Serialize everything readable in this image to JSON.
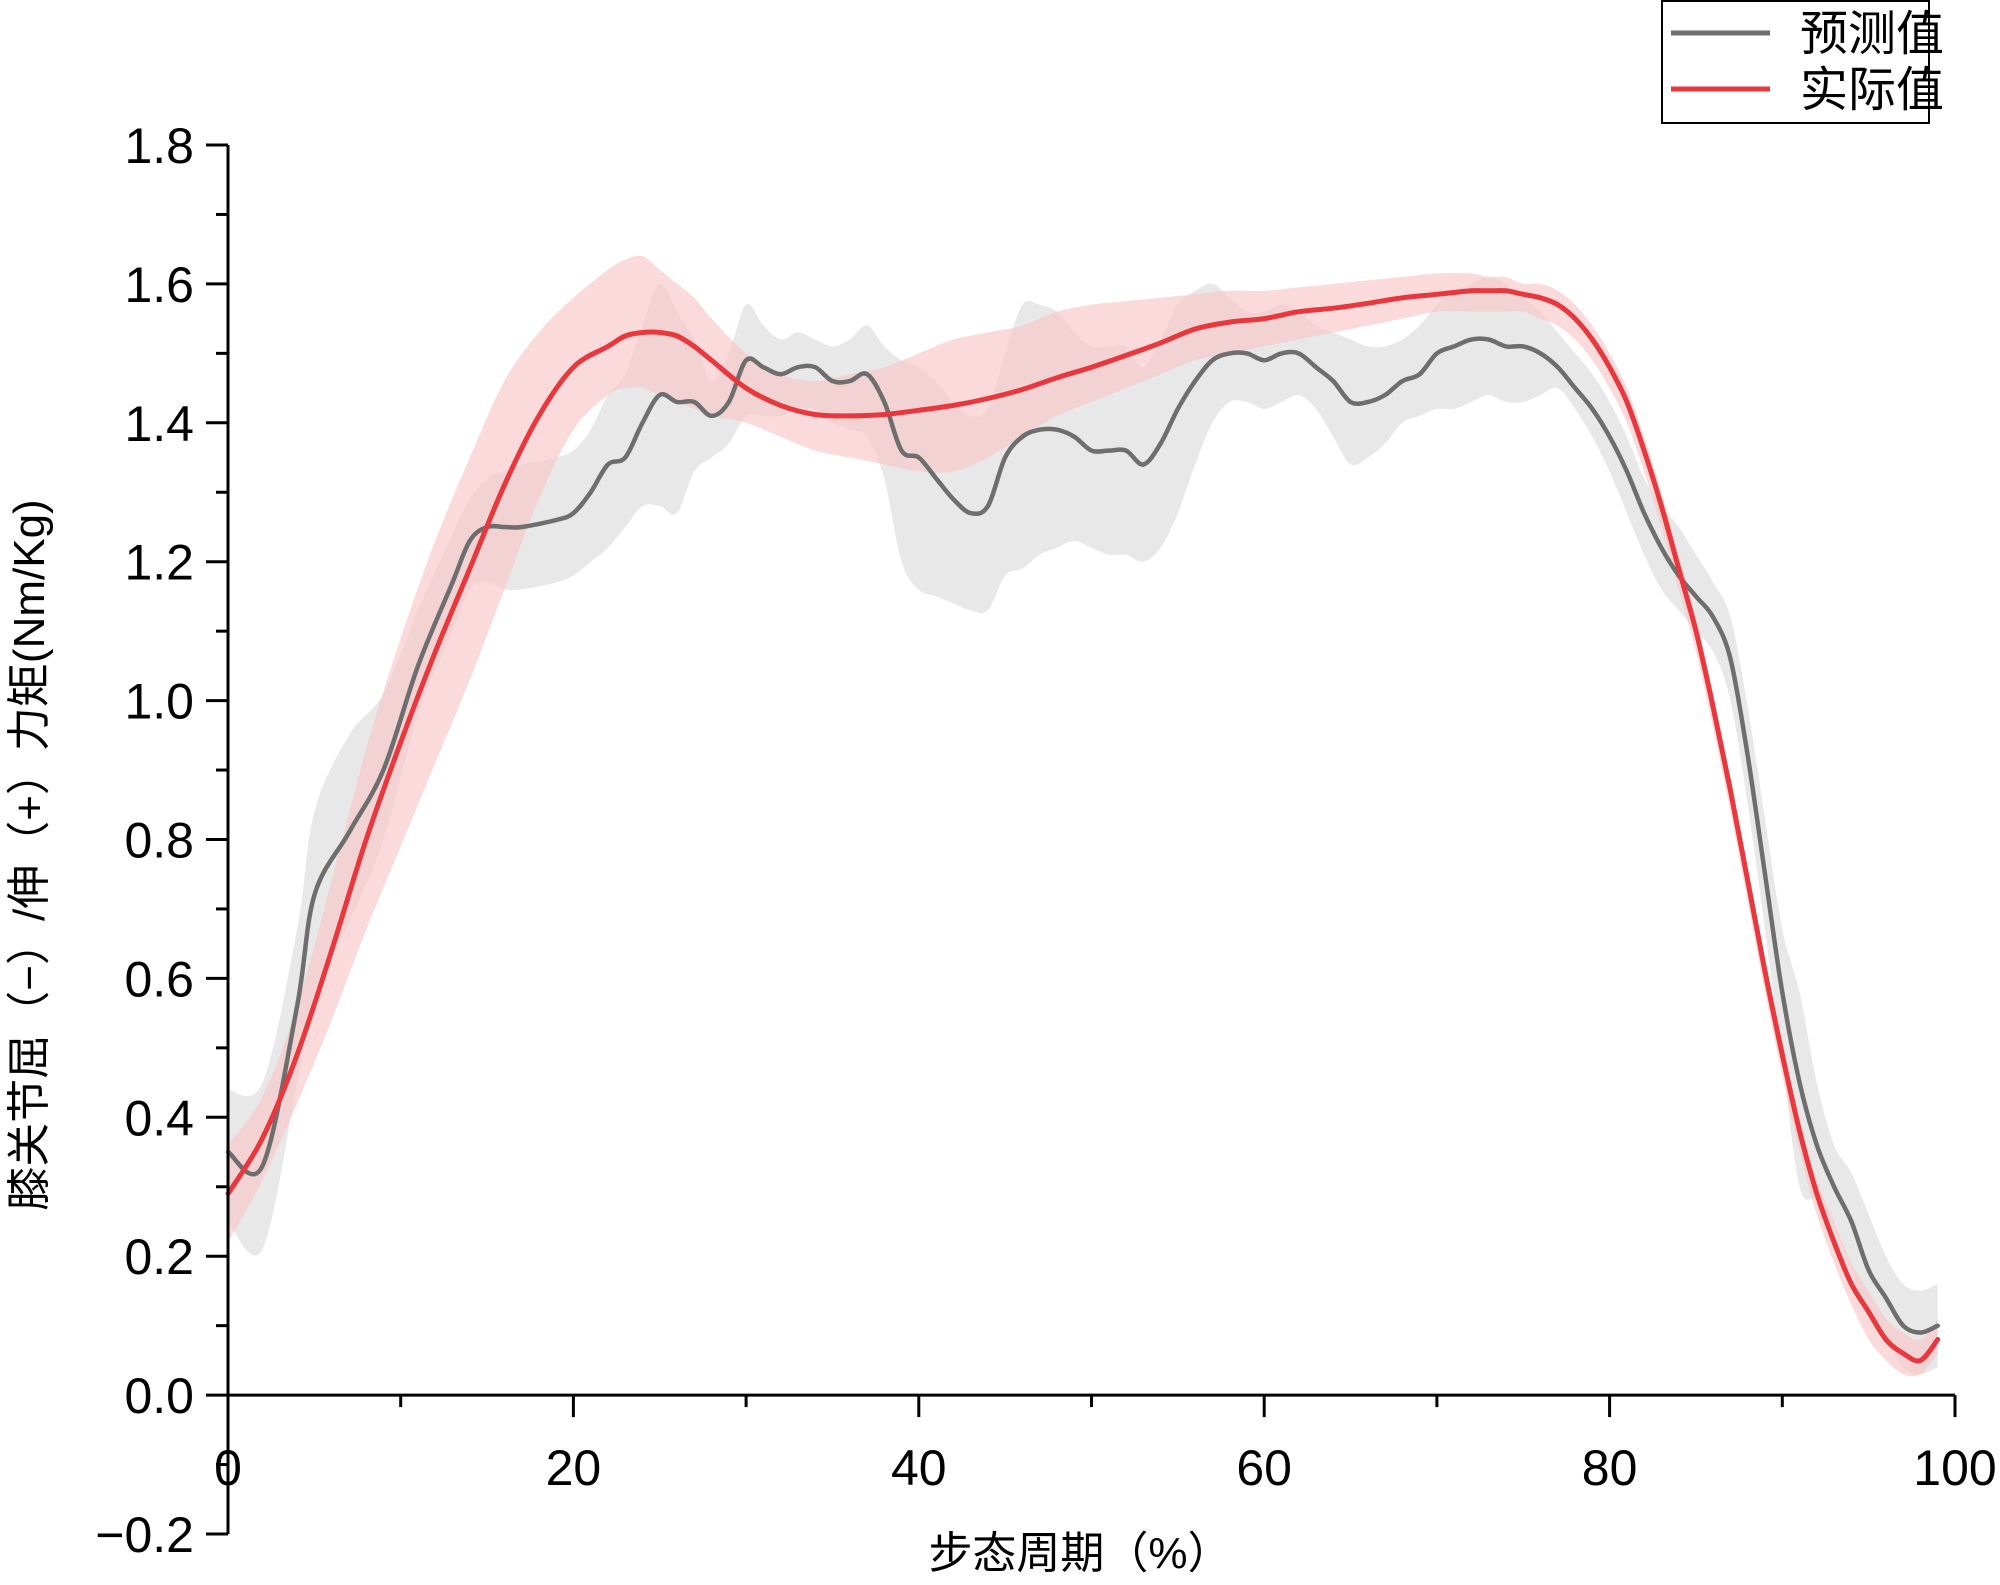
{
  "chart_data": {
    "type": "line",
    "xlabel": "步态周期（%）",
    "ylabel": "膝关节屈（−）/伸（+）力矩(Nm/Kg)",
    "xlim": [
      0,
      100
    ],
    "ylim": [
      -0.2,
      1.8
    ],
    "x_ticks": [
      0,
      20,
      40,
      60,
      80,
      100
    ],
    "y_ticks": [
      -0.2,
      0.0,
      0.2,
      0.4,
      0.6,
      0.8,
      1.0,
      1.2,
      1.4,
      1.6,
      1.8
    ],
    "x_tick_labels": [
      "0",
      "20",
      "40",
      "60",
      "80",
      "100"
    ],
    "y_tick_labels": [
      "−0.2",
      "0.0",
      "0.2",
      "0.4",
      "0.6",
      "0.8",
      "1.0",
      "1.2",
      "1.4",
      "1.6",
      "1.8"
    ],
    "grid": false,
    "legend_position": "top-right",
    "series": [
      {
        "name": "预测值",
        "color": "#6e6e6e",
        "band_color": "#d9d9d9",
        "x": [
          0,
          2,
          4,
          5,
          7,
          9,
          11,
          13,
          14,
          15,
          16,
          17,
          19,
          20,
          21,
          22,
          23,
          24,
          25,
          26,
          27,
          28,
          29,
          30,
          31,
          32,
          33,
          34,
          35,
          36,
          37,
          38,
          39,
          40,
          41,
          42,
          43,
          44,
          45,
          46,
          47,
          48,
          49,
          50,
          51,
          52,
          53,
          54,
          55,
          56,
          57,
          58,
          59,
          60,
          61,
          62,
          63,
          64,
          65,
          66,
          67,
          68,
          69,
          70,
          71,
          72,
          73,
          74,
          75,
          76,
          77,
          78,
          79,
          80,
          81,
          82,
          83,
          84,
          85,
          86,
          87,
          88,
          89,
          90,
          91,
          92,
          93,
          94,
          95,
          96,
          97,
          98,
          99
        ],
        "values": [
          0.35,
          0.33,
          0.56,
          0.72,
          0.81,
          0.9,
          1.05,
          1.17,
          1.23,
          1.25,
          1.25,
          1.25,
          1.26,
          1.27,
          1.3,
          1.34,
          1.35,
          1.4,
          1.44,
          1.43,
          1.43,
          1.41,
          1.43,
          1.49,
          1.48,
          1.47,
          1.48,
          1.48,
          1.46,
          1.46,
          1.47,
          1.43,
          1.36,
          1.35,
          1.32,
          1.29,
          1.27,
          1.28,
          1.35,
          1.38,
          1.39,
          1.39,
          1.38,
          1.36,
          1.36,
          1.36,
          1.34,
          1.37,
          1.42,
          1.46,
          1.49,
          1.5,
          1.5,
          1.49,
          1.5,
          1.5,
          1.48,
          1.46,
          1.43,
          1.43,
          1.44,
          1.46,
          1.47,
          1.5,
          1.51,
          1.52,
          1.52,
          1.51,
          1.51,
          1.5,
          1.48,
          1.45,
          1.42,
          1.38,
          1.33,
          1.27,
          1.22,
          1.18,
          1.15,
          1.12,
          1.06,
          0.92,
          0.75,
          0.58,
          0.45,
          0.36,
          0.3,
          0.25,
          0.18,
          0.14,
          0.1,
          0.09,
          0.1
        ],
        "lower": [
          0.25,
          0.21,
          0.45,
          0.58,
          0.68,
          0.8,
          0.98,
          1.1,
          1.16,
          1.17,
          1.16,
          1.16,
          1.17,
          1.18,
          1.2,
          1.22,
          1.25,
          1.28,
          1.28,
          1.27,
          1.33,
          1.35,
          1.37,
          1.41,
          1.41,
          1.41,
          1.42,
          1.42,
          1.4,
          1.39,
          1.38,
          1.32,
          1.2,
          1.16,
          1.15,
          1.14,
          1.13,
          1.13,
          1.18,
          1.19,
          1.21,
          1.22,
          1.23,
          1.22,
          1.21,
          1.21,
          1.2,
          1.22,
          1.27,
          1.34,
          1.4,
          1.43,
          1.43,
          1.42,
          1.43,
          1.44,
          1.42,
          1.38,
          1.34,
          1.35,
          1.37,
          1.4,
          1.41,
          1.42,
          1.42,
          1.43,
          1.44,
          1.43,
          1.43,
          1.44,
          1.45,
          1.42,
          1.38,
          1.33,
          1.27,
          1.21,
          1.16,
          1.13,
          1.1,
          1.07,
          1.0,
          0.85,
          0.67,
          0.48,
          0.3,
          0.28,
          0.24,
          0.18,
          0.11,
          0.08,
          0.04,
          0.03,
          0.04
        ],
        "upper": [
          0.44,
          0.45,
          0.67,
          0.84,
          0.95,
          1.01,
          1.13,
          1.24,
          1.29,
          1.32,
          1.33,
          1.34,
          1.35,
          1.36,
          1.39,
          1.44,
          1.47,
          1.54,
          1.6,
          1.56,
          1.52,
          1.46,
          1.5,
          1.57,
          1.54,
          1.52,
          1.53,
          1.52,
          1.51,
          1.52,
          1.54,
          1.51,
          1.49,
          1.48,
          1.46,
          1.43,
          1.41,
          1.42,
          1.5,
          1.57,
          1.57,
          1.56,
          1.53,
          1.51,
          1.51,
          1.51,
          1.48,
          1.52,
          1.57,
          1.59,
          1.6,
          1.58,
          1.56,
          1.56,
          1.57,
          1.56,
          1.54,
          1.53,
          1.52,
          1.51,
          1.51,
          1.52,
          1.54,
          1.57,
          1.59,
          1.6,
          1.61,
          1.6,
          1.58,
          1.56,
          1.53,
          1.5,
          1.47,
          1.43,
          1.38,
          1.32,
          1.28,
          1.25,
          1.21,
          1.17,
          1.12,
          0.99,
          0.83,
          0.67,
          0.58,
          0.45,
          0.36,
          0.32,
          0.26,
          0.2,
          0.16,
          0.15,
          0.16
        ]
      },
      {
        "name": "实际值",
        "color": "#e8383d",
        "band_color": "#f7c6c6",
        "x": [
          0,
          2,
          4,
          6,
          8,
          10,
          12,
          14,
          16,
          18,
          20,
          22,
          23,
          24,
          25,
          26,
          27,
          28,
          30,
          32,
          34,
          36,
          38,
          40,
          42,
          44,
          46,
          48,
          50,
          52,
          54,
          56,
          58,
          60,
          62,
          64,
          66,
          68,
          70,
          72,
          73,
          74,
          75,
          76,
          77,
          78,
          79,
          80,
          81,
          82,
          83,
          84,
          85,
          86,
          87,
          88,
          89,
          90,
          91,
          92,
          93,
          94,
          95,
          96,
          97,
          98,
          99
        ],
        "values": [
          0.29,
          0.37,
          0.49,
          0.64,
          0.8,
          0.94,
          1.07,
          1.19,
          1.31,
          1.41,
          1.48,
          1.51,
          1.525,
          1.53,
          1.53,
          1.525,
          1.51,
          1.49,
          1.45,
          1.425,
          1.412,
          1.41,
          1.412,
          1.418,
          1.425,
          1.435,
          1.448,
          1.465,
          1.48,
          1.497,
          1.515,
          1.535,
          1.545,
          1.55,
          1.56,
          1.565,
          1.572,
          1.58,
          1.585,
          1.59,
          1.59,
          1.59,
          1.585,
          1.58,
          1.57,
          1.55,
          1.52,
          1.48,
          1.43,
          1.36,
          1.28,
          1.19,
          1.1,
          0.99,
          0.87,
          0.74,
          0.61,
          0.49,
          0.38,
          0.29,
          0.22,
          0.16,
          0.12,
          0.08,
          0.06,
          0.05,
          0.08
        ],
        "lower": [
          0.22,
          0.31,
          0.42,
          0.54,
          0.67,
          0.79,
          0.91,
          1.03,
          1.16,
          1.29,
          1.39,
          1.44,
          1.45,
          1.45,
          1.44,
          1.43,
          1.42,
          1.41,
          1.4,
          1.38,
          1.36,
          1.35,
          1.34,
          1.33,
          1.33,
          1.35,
          1.38,
          1.41,
          1.43,
          1.45,
          1.47,
          1.49,
          1.5,
          1.51,
          1.52,
          1.53,
          1.54,
          1.55,
          1.56,
          1.56,
          1.56,
          1.56,
          1.56,
          1.55,
          1.54,
          1.52,
          1.49,
          1.45,
          1.4,
          1.33,
          1.25,
          1.16,
          1.07,
          0.96,
          0.84,
          0.71,
          0.58,
          0.46,
          0.35,
          0.26,
          0.19,
          0.13,
          0.08,
          0.05,
          0.03,
          0.03,
          0.06
        ],
        "upper": [
          0.36,
          0.43,
          0.56,
          0.74,
          0.93,
          1.09,
          1.23,
          1.35,
          1.46,
          1.53,
          1.58,
          1.62,
          1.635,
          1.64,
          1.62,
          1.6,
          1.58,
          1.55,
          1.5,
          1.47,
          1.46,
          1.47,
          1.48,
          1.5,
          1.52,
          1.53,
          1.54,
          1.56,
          1.57,
          1.575,
          1.58,
          1.585,
          1.59,
          1.59,
          1.595,
          1.6,
          1.605,
          1.61,
          1.615,
          1.615,
          1.61,
          1.61,
          1.6,
          1.6,
          1.59,
          1.57,
          1.54,
          1.5,
          1.45,
          1.38,
          1.3,
          1.21,
          1.12,
          1.01,
          0.89,
          0.76,
          0.63,
          0.51,
          0.4,
          0.31,
          0.25,
          0.19,
          0.15,
          0.11,
          0.09,
          0.08,
          0.11
        ]
      }
    ]
  }
}
